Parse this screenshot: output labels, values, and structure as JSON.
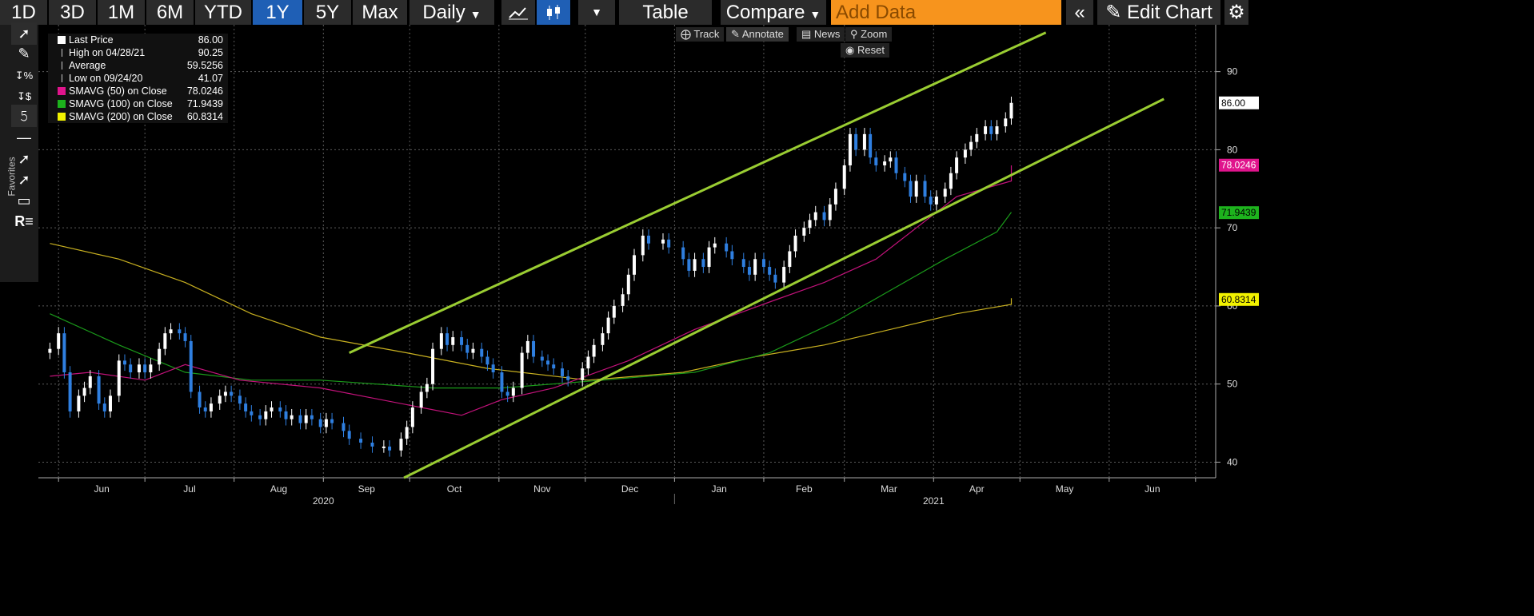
{
  "toolbar": {
    "ranges": [
      "1D",
      "3D",
      "1M",
      "6M",
      "YTD",
      "1Y",
      "5Y",
      "Max"
    ],
    "active_range": "1Y",
    "period": "Daily",
    "table_label": "Table",
    "compare_label": "Compare",
    "add_data_placeholder": "Add Data",
    "edit_chart_label": "Edit Chart"
  },
  "sidebar": {
    "favorites_label": "Favorites"
  },
  "controls": {
    "track": "Track",
    "annotate": "Annotate",
    "news": "News",
    "zoom": "Zoom",
    "reset": "Reset"
  },
  "legend": [
    {
      "label": "Last Price",
      "value": "86.00",
      "color": "#ffffff"
    },
    {
      "label": "High on 04/28/21",
      "value": "90.25",
      "color": "none"
    },
    {
      "label": "Average",
      "value": "59.5256",
      "color": "none"
    },
    {
      "label": "Low on 09/24/20",
      "value": "41.07",
      "color": "none"
    },
    {
      "label": "SMAVG (50)  on Close",
      "value": "78.0246",
      "color": "#e0148c"
    },
    {
      "label": "SMAVG (100)  on Close",
      "value": "71.9439",
      "color": "#1db31d"
    },
    {
      "label": "SMAVG (200)  on Close",
      "value": "60.8314",
      "color": "#f2f200"
    }
  ],
  "chart_data": {
    "type": "candlestick",
    "y_ticks": [
      40,
      50,
      60,
      70,
      80,
      90
    ],
    "ylim": [
      38,
      96
    ],
    "x_month_labels": [
      "Jun",
      "Jul",
      "Aug",
      "Sep",
      "Oct",
      "Nov",
      "Dec",
      "Jan",
      "Feb",
      "Mar",
      "Apr",
      "May",
      "Jun"
    ],
    "year_labels": [
      "2020",
      "2021"
    ],
    "grid": true,
    "price_series": [
      [
        "2020-05-29",
        54.5
      ],
      [
        "2020-06-01",
        56.5
      ],
      [
        "2020-06-03",
        51.5
      ],
      [
        "2020-06-05",
        46.5
      ],
      [
        "2020-06-08",
        48.5
      ],
      [
        "2020-06-10",
        49.5
      ],
      [
        "2020-06-12",
        51
      ],
      [
        "2020-06-15",
        47.5
      ],
      [
        "2020-06-17",
        46.5
      ],
      [
        "2020-06-19",
        48.5
      ],
      [
        "2020-06-22",
        53
      ],
      [
        "2020-06-24",
        52.5
      ],
      [
        "2020-06-26",
        51.5
      ],
      [
        "2020-06-29",
        52.5
      ],
      [
        "2020-07-01",
        51.5
      ],
      [
        "2020-07-03",
        52.5
      ],
      [
        "2020-07-06",
        54.5
      ],
      [
        "2020-07-08",
        56.5
      ],
      [
        "2020-07-10",
        57
      ],
      [
        "2020-07-13",
        56.5
      ],
      [
        "2020-07-15",
        55.5
      ],
      [
        "2020-07-17",
        49
      ],
      [
        "2020-07-20",
        47
      ],
      [
        "2020-07-22",
        46.5
      ],
      [
        "2020-07-24",
        47.5
      ],
      [
        "2020-07-27",
        48.5
      ],
      [
        "2020-07-29",
        49
      ],
      [
        "2020-07-31",
        48.5
      ],
      [
        "2020-08-03",
        47.5
      ],
      [
        "2020-08-05",
        46.5
      ],
      [
        "2020-08-07",
        46
      ],
      [
        "2020-08-10",
        45.5
      ],
      [
        "2020-08-12",
        46.5
      ],
      [
        "2020-08-14",
        47
      ],
      [
        "2020-08-17",
        46.5
      ],
      [
        "2020-08-19",
        45.5
      ],
      [
        "2020-08-21",
        46
      ],
      [
        "2020-08-24",
        45
      ],
      [
        "2020-08-26",
        46
      ],
      [
        "2020-08-28",
        45.5
      ],
      [
        "2020-08-31",
        44.5
      ],
      [
        "2020-09-02",
        45.5
      ],
      [
        "2020-09-04",
        45
      ],
      [
        "2020-09-08",
        44
      ],
      [
        "2020-09-10",
        43
      ],
      [
        "2020-09-14",
        42.5
      ],
      [
        "2020-09-18",
        42
      ],
      [
        "2020-09-22",
        42
      ],
      [
        "2020-09-24",
        41.5
      ],
      [
        "2020-09-28",
        43
      ],
      [
        "2020-09-30",
        44.5
      ],
      [
        "2020-10-02",
        47
      ],
      [
        "2020-10-05",
        49
      ],
      [
        "2020-10-07",
        50
      ],
      [
        "2020-10-09",
        54.5
      ],
      [
        "2020-10-12",
        56.5
      ],
      [
        "2020-10-14",
        55
      ],
      [
        "2020-10-16",
        56
      ],
      [
        "2020-10-19",
        55
      ],
      [
        "2020-10-21",
        54
      ],
      [
        "2020-10-23",
        54.5
      ],
      [
        "2020-10-26",
        53.5
      ],
      [
        "2020-10-28",
        52.5
      ],
      [
        "2020-10-30",
        51.5
      ],
      [
        "2020-11-02",
        49
      ],
      [
        "2020-11-04",
        48.5
      ],
      [
        "2020-11-06",
        49.5
      ],
      [
        "2020-11-09",
        54
      ],
      [
        "2020-11-11",
        55.5
      ],
      [
        "2020-11-13",
        53.5
      ],
      [
        "2020-11-16",
        53
      ],
      [
        "2020-11-18",
        52.5
      ],
      [
        "2020-11-20",
        52
      ],
      [
        "2020-11-23",
        51
      ],
      [
        "2020-11-25",
        50.5
      ],
      [
        "2020-11-30",
        52
      ],
      [
        "2020-12-02",
        53.5
      ],
      [
        "2020-12-04",
        55
      ],
      [
        "2020-12-07",
        56.5
      ],
      [
        "2020-12-09",
        58.5
      ],
      [
        "2020-12-11",
        60
      ],
      [
        "2020-12-14",
        61.5
      ],
      [
        "2020-12-16",
        64
      ],
      [
        "2020-12-18",
        66.5
      ],
      [
        "2020-12-21",
        69
      ],
      [
        "2020-12-23",
        68
      ],
      [
        "2020-12-28",
        68.5
      ],
      [
        "2020-12-30",
        67.5
      ],
      [
        "2021-01-04",
        66
      ],
      [
        "2021-01-06",
        64.5
      ],
      [
        "2021-01-08",
        66
      ],
      [
        "2021-01-11",
        65
      ],
      [
        "2021-01-13",
        67.5
      ],
      [
        "2021-01-15",
        68
      ],
      [
        "2021-01-19",
        67
      ],
      [
        "2021-01-21",
        66
      ],
      [
        "2021-01-25",
        65
      ],
      [
        "2021-01-27",
        64
      ],
      [
        "2021-01-29",
        66
      ],
      [
        "2021-02-01",
        65
      ],
      [
        "2021-02-03",
        64
      ],
      [
        "2021-02-05",
        63
      ],
      [
        "2021-02-08",
        65
      ],
      [
        "2021-02-10",
        67
      ],
      [
        "2021-02-12",
        69
      ],
      [
        "2021-02-15",
        70
      ],
      [
        "2021-02-17",
        71
      ],
      [
        "2021-02-19",
        72
      ],
      [
        "2021-02-22",
        71
      ],
      [
        "2021-02-24",
        73
      ],
      [
        "2021-02-26",
        75
      ],
      [
        "2021-03-01",
        78
      ],
      [
        "2021-03-03",
        82
      ],
      [
        "2021-03-05",
        80
      ],
      [
        "2021-03-08",
        82
      ],
      [
        "2021-03-10",
        79
      ],
      [
        "2021-03-12",
        78
      ],
      [
        "2021-03-15",
        78.5
      ],
      [
        "2021-03-17",
        79
      ],
      [
        "2021-03-19",
        77
      ],
      [
        "2021-03-22",
        76
      ],
      [
        "2021-03-24",
        74
      ],
      [
        "2021-03-26",
        76
      ],
      [
        "2021-03-29",
        74
      ],
      [
        "2021-03-31",
        73
      ],
      [
        "2021-04-02",
        74
      ],
      [
        "2021-04-05",
        75
      ],
      [
        "2021-04-07",
        77
      ],
      [
        "2021-04-09",
        79
      ],
      [
        "2021-04-12",
        80
      ],
      [
        "2021-04-14",
        81
      ],
      [
        "2021-04-16",
        82
      ],
      [
        "2021-04-19",
        83
      ],
      [
        "2021-04-21",
        82
      ],
      [
        "2021-04-23",
        83
      ],
      [
        "2021-04-26",
        84
      ],
      [
        "2021-04-28",
        86
      ]
    ],
    "smavg_50": [
      [
        0,
        51
      ],
      [
        6,
        51.5
      ],
      [
        14,
        50.5
      ],
      [
        20,
        52.5
      ],
      [
        28,
        50.5
      ],
      [
        40,
        49.5
      ],
      [
        52,
        47
      ],
      [
        58,
        46
      ],
      [
        64,
        48
      ],
      [
        72,
        49.5
      ],
      [
        82,
        53
      ],
      [
        90,
        57
      ],
      [
        100,
        60.5
      ],
      [
        108,
        63
      ],
      [
        116,
        66
      ],
      [
        122,
        70
      ],
      [
        128,
        74
      ],
      [
        136,
        76
      ],
      [
        140,
        78
      ]
    ],
    "smavg_100": [
      [
        0,
        59
      ],
      [
        10,
        55
      ],
      [
        20,
        51.5
      ],
      [
        30,
        50.5
      ],
      [
        40,
        50.5
      ],
      [
        54,
        49.5
      ],
      [
        64,
        49.5
      ],
      [
        78,
        50.5
      ],
      [
        90,
        51.5
      ],
      [
        100,
        54
      ],
      [
        110,
        58
      ],
      [
        118,
        62
      ],
      [
        126,
        66
      ],
      [
        134,
        69.5
      ],
      [
        140,
        72
      ]
    ],
    "smavg_200": [
      [
        0,
        68
      ],
      [
        10,
        66
      ],
      [
        20,
        63
      ],
      [
        30,
        59
      ],
      [
        40,
        56
      ],
      [
        50,
        54
      ],
      [
        62,
        52
      ],
      [
        76,
        50.5
      ],
      [
        88,
        51.5
      ],
      [
        98,
        53.5
      ],
      [
        108,
        55
      ],
      [
        118,
        57
      ],
      [
        128,
        59
      ],
      [
        136,
        60.2
      ],
      [
        140,
        61
      ]
    ],
    "trendlines": [
      {
        "from": [
          "2020-09-10",
          54
        ],
        "to": [
          "2021-05-10",
          95
        ]
      },
      {
        "from": [
          "2020-09-29",
          38
        ],
        "to": [
          "2021-06-20",
          86.5
        ]
      }
    ],
    "price_tags": [
      {
        "value": 86.0,
        "label": "86.00",
        "bg": "#ffffff",
        "fg": "#000000"
      },
      {
        "value": 78.0246,
        "label": "78.0246",
        "bg": "#e0148c",
        "fg": "#ffffff"
      },
      {
        "value": 71.9439,
        "label": "71.9439",
        "bg": "#1db31d",
        "fg": "#000000"
      },
      {
        "value": 60.8314,
        "label": "60.8314",
        "bg": "#f2f200",
        "fg": "#000000"
      }
    ],
    "colors": {
      "up": "#ffffff",
      "down": "#2f7fe0",
      "trend": "#9acd32",
      "grid": "#5a5a5a"
    }
  }
}
